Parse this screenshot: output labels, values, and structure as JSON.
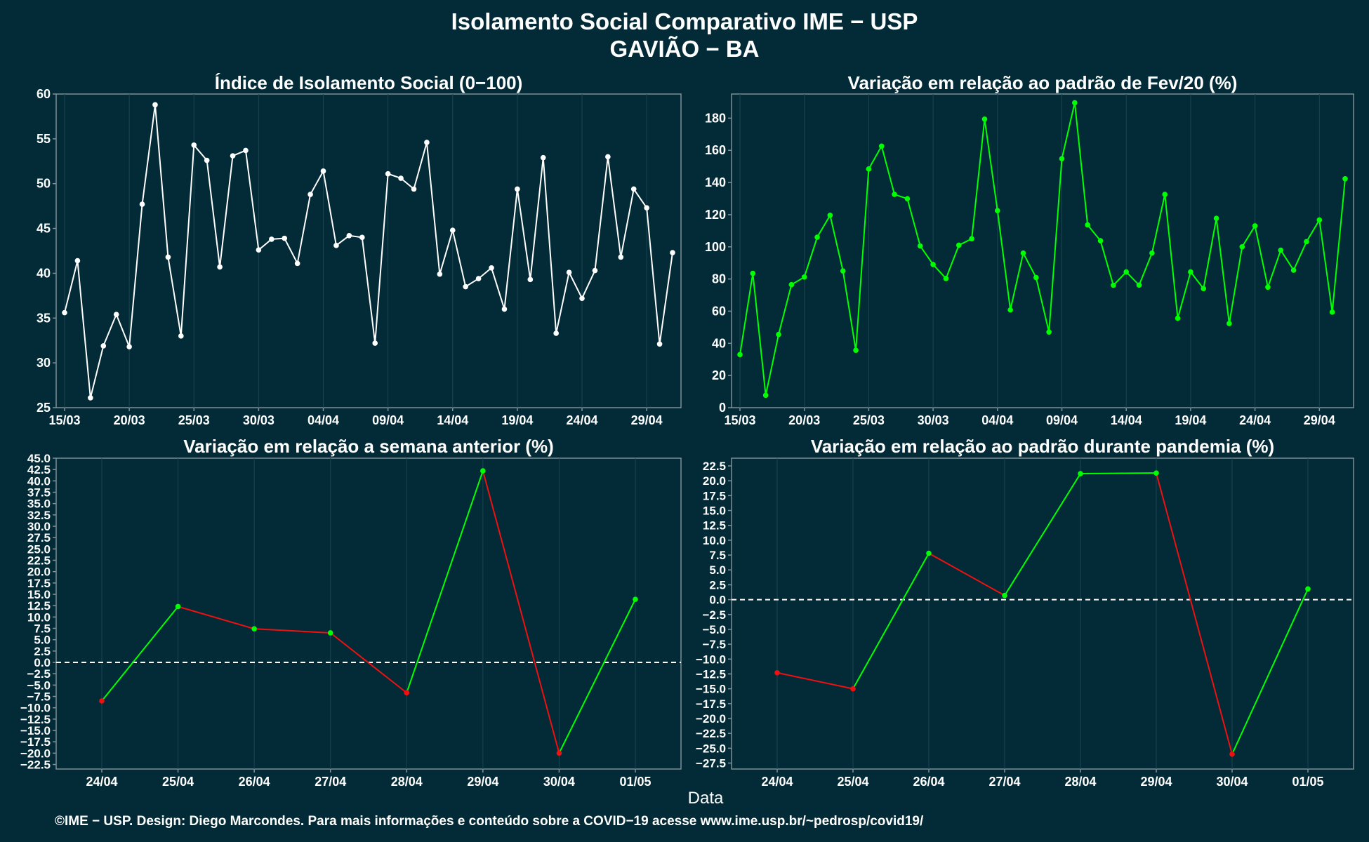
{
  "title_line1": "Isolamento Social Comparativo IME − USP",
  "title_line2": "GAVIÃO − BA",
  "xlabel": "Data",
  "caption": "©IME − USP. Design: Diego Marcondes. Para mais informações e conteúdo sobre a COVID−19 acesse www.ime.usp.br/~pedrosp/covid19/",
  "colors": {
    "background": "#022b37",
    "white": "#ffffff",
    "green": "#00ff00",
    "red": "#ee1111",
    "frame": "#7f9097",
    "grid": "#1b4451"
  },
  "chart_data": [
    {
      "id": "indice",
      "type": "line",
      "title": "Índice de Isolamento Social (0−100)",
      "color": "#ffffff",
      "x_ticks": [
        "15/03",
        "20/03",
        "25/03",
        "30/03",
        "04/04",
        "09/04",
        "14/04",
        "19/04",
        "24/04",
        "29/04"
      ],
      "x_tick_index": [
        0,
        5,
        10,
        15,
        20,
        25,
        30,
        35,
        40,
        45
      ],
      "y_ticks": [
        "25",
        "30",
        "35",
        "40",
        "45",
        "50",
        "55",
        "60"
      ],
      "ylim": [
        25,
        60
      ],
      "grid": true,
      "dates_note": "daily from 15/03 to 01/05",
      "values": [
        35.6,
        41.4,
        26.1,
        31.9,
        35.4,
        31.8,
        47.7,
        58.8,
        41.8,
        33.0,
        54.3,
        52.6,
        40.7,
        53.1,
        53.7,
        42.6,
        43.8,
        43.9,
        41.1,
        48.8,
        51.4,
        43.1,
        44.2,
        44.0,
        32.2,
        51.1,
        50.6,
        49.4,
        54.6,
        39.9,
        44.8,
        38.5,
        39.4,
        40.6,
        36.0,
        49.4,
        39.3,
        52.9,
        33.3,
        40.1,
        37.2,
        40.3,
        53.0,
        41.8,
        49.4,
        47.3,
        32.1,
        42.3
      ]
    },
    {
      "id": "fev",
      "type": "line",
      "title": "Variação em relação ao padrão de Fev/20 (%)",
      "color": "#00ff00",
      "x_ticks": [
        "15/03",
        "20/03",
        "25/03",
        "30/03",
        "04/04",
        "09/04",
        "14/04",
        "19/04",
        "24/04",
        "29/04"
      ],
      "x_tick_index": [
        0,
        5,
        10,
        15,
        20,
        25,
        30,
        35,
        40,
        45
      ],
      "y_ticks": [
        "0",
        "20",
        "40",
        "60",
        "80",
        "100",
        "120",
        "140",
        "160",
        "180"
      ],
      "ylim": [
        0,
        195
      ],
      "grid": true,
      "values": [
        33.0,
        83.5,
        7.7,
        45.5,
        76.5,
        81.2,
        106.0,
        119.6,
        85.0,
        35.7,
        148.4,
        162.6,
        132.6,
        129.9,
        100.5,
        89.0,
        80.3,
        101.0,
        105.0,
        179.4,
        122.5,
        60.8,
        96.1,
        80.9,
        47.0,
        154.8,
        189.6,
        113.6,
        103.8,
        76.1,
        84.4,
        76.2,
        96.1,
        132.6,
        55.6,
        84.4,
        74.0,
        117.7,
        52.3,
        100.0,
        113.0,
        74.9,
        97.9,
        85.5,
        103.2,
        116.7,
        59.4,
        142.3
      ]
    },
    {
      "id": "semana",
      "type": "line",
      "title": "Variação em relação a semana anterior (%)",
      "categories": [
        "24/04",
        "25/04",
        "26/04",
        "27/04",
        "28/04",
        "29/04",
        "30/04",
        "01/05"
      ],
      "values": [
        -8.5,
        12.3,
        7.4,
        6.5,
        -6.7,
        42.2,
        -20.0,
        13.9
      ],
      "colors_note": "segment green when rising, red when falling",
      "y_ticks": [
        "−22.5",
        "−20.0",
        "−17.5",
        "−15.0",
        "−12.5",
        "−10.0",
        "−7.5",
        "−5.0",
        "−2.5",
        "0.0",
        "2.5",
        "5.0",
        "7.5",
        "10.0",
        "12.5",
        "15.0",
        "17.5",
        "20.0",
        "22.5",
        "25.0",
        "27.5",
        "30.0",
        "32.5",
        "35.0",
        "37.5",
        "40.0",
        "42.5",
        "45.0"
      ],
      "ylim": [
        -23.5,
        45
      ],
      "reference_line": 0,
      "grid": true
    },
    {
      "id": "pandemia",
      "type": "line",
      "title": "Variação em relação ao padrão durante pandemia (%)",
      "categories": [
        "24/04",
        "25/04",
        "26/04",
        "27/04",
        "28/04",
        "29/04",
        "30/04",
        "01/05"
      ],
      "values": [
        -12.3,
        -15.0,
        7.8,
        0.7,
        21.2,
        21.3,
        -26.0,
        1.8
      ],
      "colors_note": "segment green when rising, red when falling",
      "y_ticks": [
        "−27.5",
        "−25.0",
        "−22.5",
        "−20.0",
        "−17.5",
        "−15.0",
        "−12.5",
        "−10.0",
        "−7.5",
        "−5.0",
        "−2.5",
        "0.0",
        "2.5",
        "5.0",
        "7.5",
        "10.0",
        "12.5",
        "15.0",
        "17.5",
        "20.0",
        "22.5"
      ],
      "ylim": [
        -28.5,
        23.8
      ],
      "reference_line": 0,
      "grid": true
    }
  ]
}
